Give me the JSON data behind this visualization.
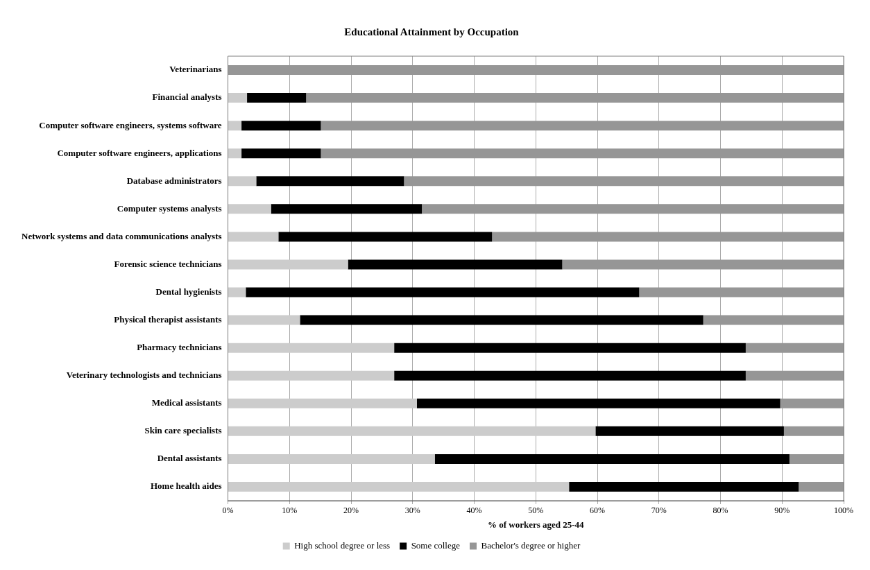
{
  "chart_data": {
    "type": "bar",
    "orientation": "horizontal",
    "stacked": true,
    "title": "Educational Attainment by Occupation",
    "xlabel": "% of workers aged 25-44",
    "categories": [
      "Veterinarians",
      "Financial analysts",
      "Computer software engineers, systems software",
      "Computer software engineers, applications",
      "Database administrators",
      "Computer systems analysts",
      "Network systems and data communications analysts",
      "Forensic science technicians",
      "Dental hygienists",
      "Physical therapist assistants",
      "Pharmacy technicians",
      "Veterinary technologists and technicians",
      "Medical assistants",
      "Skin care specialists",
      "Dental assistants",
      "Home health aides"
    ],
    "series": [
      {
        "name": "High school degree or less",
        "color": "#cccccc",
        "values": [
          0,
          3.1,
          2.2,
          2.2,
          4.6,
          7.0,
          8.2,
          19.5,
          2.9,
          11.7,
          27.0,
          27.0,
          30.7,
          59.7,
          33.6,
          55.4
        ]
      },
      {
        "name": "Some college",
        "color": "#000000",
        "values": [
          0,
          9.6,
          12.9,
          12.9,
          24.0,
          24.5,
          34.7,
          34.8,
          63.9,
          65.5,
          57.1,
          57.1,
          59.0,
          30.6,
          57.6,
          37.3
        ]
      },
      {
        "name": "Bachelor's degree or higher",
        "color": "#969696",
        "values": [
          100,
          87.3,
          84.9,
          84.9,
          71.4,
          68.5,
          57.1,
          45.7,
          33.2,
          22.8,
          15.9,
          15.9,
          10.3,
          9.7,
          8.8,
          7.3
        ]
      }
    ],
    "xlim": [
      0,
      100
    ],
    "xticks": [
      {
        "value": 0,
        "label": "0%"
      },
      {
        "value": 10,
        "label": "10%"
      },
      {
        "value": 20,
        "label": "20%"
      },
      {
        "value": 30,
        "label": "30%"
      },
      {
        "value": 40,
        "label": "40%"
      },
      {
        "value": 50,
        "label": "50%"
      },
      {
        "value": 60,
        "label": "60%"
      },
      {
        "value": 70,
        "label": "70%"
      },
      {
        "value": 80,
        "label": "80%"
      },
      {
        "value": 90,
        "label": "90%"
      },
      {
        "value": 100,
        "label": "100%"
      }
    ],
    "grid": "x",
    "legend": "bottom"
  }
}
